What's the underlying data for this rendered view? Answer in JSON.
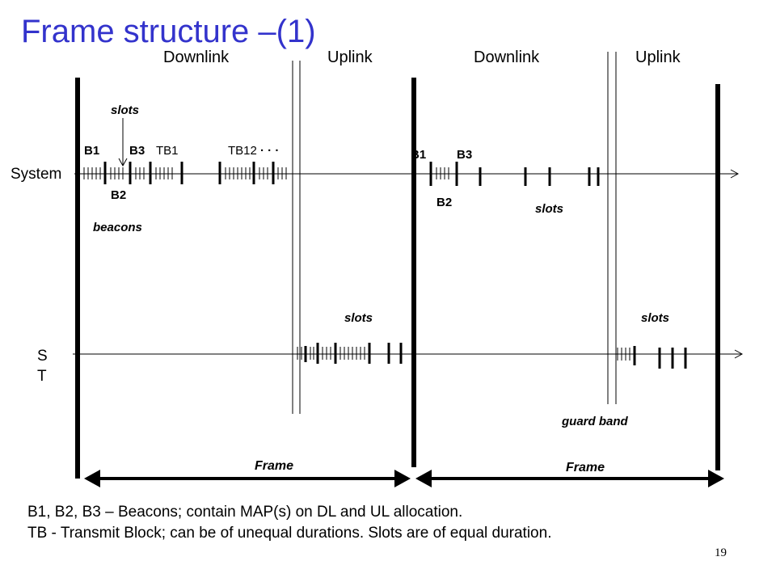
{
  "title": "Frame structure –(1)",
  "headers": {
    "downlink_1": "Downlink",
    "uplink_1": "Uplink",
    "downlink_2": "Downlink",
    "uplink_2": "Uplink"
  },
  "axes": {
    "system": "System",
    "st_line1": "S",
    "st_line2": "T"
  },
  "labels": {
    "b1_first": "B1",
    "b3_first": "B3",
    "tb1": "TB1",
    "tb12": "TB12",
    "ellipsis": "· · ·",
    "b2_first": "B2",
    "beacons": "beacons",
    "slots_top": "slots",
    "b1_second": "B1",
    "b3_second": "B3",
    "b2_second": "B2",
    "slots_dl2": "slots",
    "slots_ul1": "slots",
    "slots_ul2": "slots",
    "guard_band": "guard band",
    "frame_1": "Frame",
    "frame_2": "Frame"
  },
  "caption": {
    "line1": "B1, B2, B3 – Beacons; contain MAP(s) on DL and UL allocation.",
    "line2": "TB - Transmit Block; can be of unequal durations. Slots are of equal duration."
  },
  "page_number": "19",
  "colors": {
    "title": "#3333cc",
    "ink": "#000000"
  }
}
